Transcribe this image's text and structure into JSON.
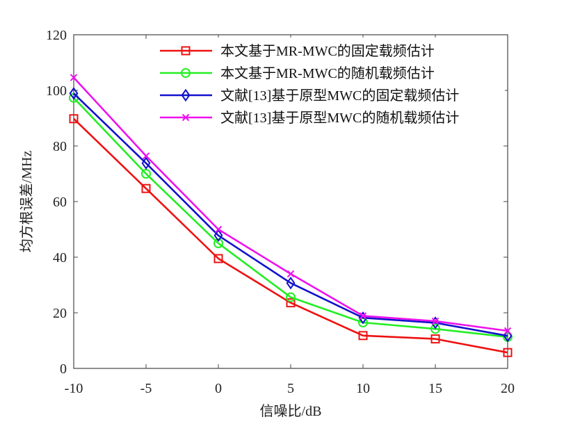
{
  "chart_data": {
    "type": "line",
    "title": "",
    "xlabel": "信噪比/dB",
    "ylabel": "均方根误差/MHz",
    "xlim": [
      -10,
      20
    ],
    "ylim": [
      0,
      120
    ],
    "xticks": [
      -10,
      -5,
      0,
      5,
      10,
      15,
      20
    ],
    "xtick_labels": [
      "-10",
      "-5",
      "0",
      "5",
      "10",
      "15",
      "20"
    ],
    "yticks": [
      0,
      20,
      40,
      60,
      80,
      100,
      120
    ],
    "ytick_labels": [
      "0",
      "20",
      "40",
      "60",
      "80",
      "100",
      "120"
    ],
    "grid": false,
    "legend_position": "top-right",
    "x": [
      -10,
      -5,
      0,
      5,
      10,
      15,
      20
    ],
    "series": [
      {
        "name": "本文基于MR-MWC的固定载频估计",
        "color": "#ee1111",
        "marker": "square",
        "values": [
          89.8,
          64.7,
          39.5,
          23.6,
          11.8,
          10.6,
          5.7
        ]
      },
      {
        "name": "本文基于MR-MWC的随机载频估计",
        "color": "#22ee22",
        "marker": "circle",
        "values": [
          97.3,
          70.0,
          45.0,
          25.6,
          16.5,
          14.2,
          11.3
        ]
      },
      {
        "name": "文献[13]基于原型MWC的固定载频估计",
        "color": "#1111cc",
        "marker": "diamond",
        "values": [
          98.9,
          73.8,
          47.8,
          30.7,
          18.2,
          16.4,
          11.7
        ]
      },
      {
        "name": "文献[13]基于原型MWC的随机载频估计",
        "color": "#ee11ee",
        "marker": "x",
        "values": [
          104.6,
          76.4,
          50.0,
          34.0,
          18.9,
          17.0,
          13.5
        ]
      }
    ]
  }
}
